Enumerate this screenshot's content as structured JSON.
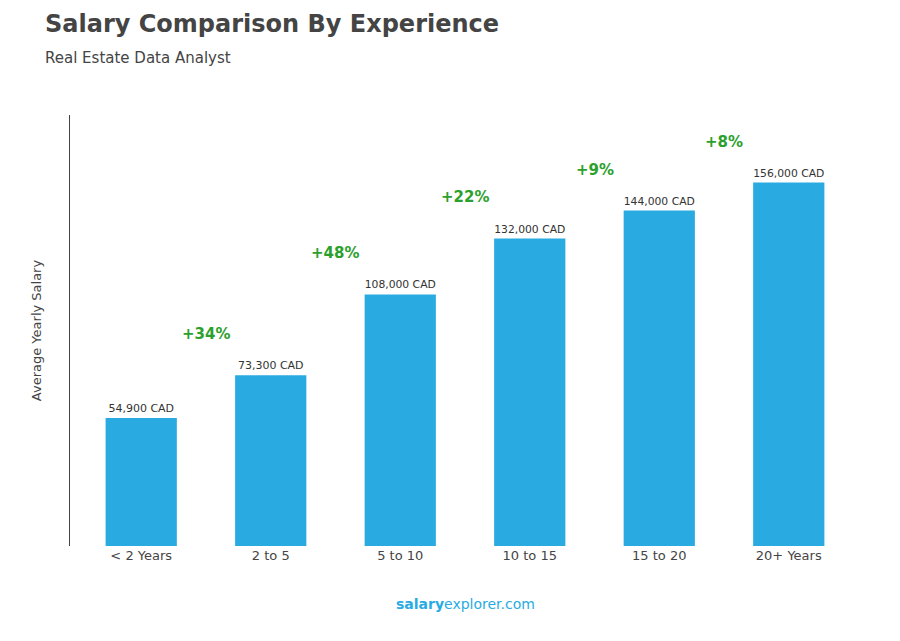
{
  "chart_data": {
    "type": "bar",
    "title": "Salary Comparison By Experience",
    "subtitle": "Real Estate Data Analyst",
    "ylabel": "Average Yearly Salary",
    "categories": [
      "< 2 Years",
      "2 to 5",
      "5 to 10",
      "10 to 15",
      "15 to 20",
      "20+ Years"
    ],
    "values": [
      54900,
      73300,
      108000,
      132000,
      144000,
      156000
    ],
    "value_labels": [
      "54,900 CAD",
      "73,300 CAD",
      "108,000 CAD",
      "132,000 CAD",
      "144,000 CAD",
      "156,000 CAD"
    ],
    "data_labels": true,
    "color": "#29ABE2",
    "annotations": [
      "+34%",
      "+48%",
      "+22%",
      "+9%",
      "+8%"
    ],
    "footer": [
      "salary",
      "explorer.com"
    ],
    "ylim": [
      0,
      185000
    ],
    "grid": false,
    "tick_labels": "x"
  }
}
